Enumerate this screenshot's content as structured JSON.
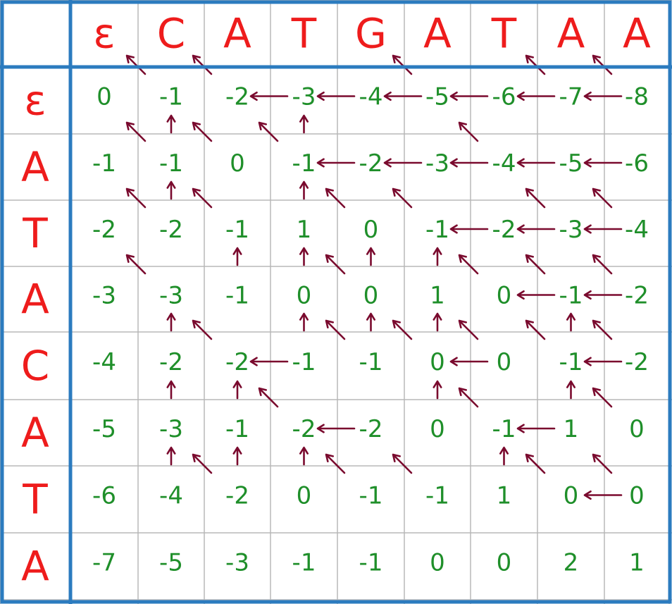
{
  "colors": {
    "grid_line": "#b8b8b8",
    "frame": "#2b7bbf",
    "header_text": "#ee1c1c",
    "value_text": "#1f8f2a",
    "arrow": "#7a0a2e"
  },
  "col_headers": [
    "ε",
    "C",
    "A",
    "T",
    "G",
    "A",
    "T",
    "A",
    "A"
  ],
  "row_headers": [
    "ε",
    "A",
    "T",
    "A",
    "C",
    "A",
    "T",
    "A"
  ],
  "scores": [
    [
      "0",
      "-1",
      "-2",
      "-3",
      "-4",
      "-5",
      "-6",
      "-7",
      "-8"
    ],
    [
      "-1",
      "-1",
      "0",
      "-1",
      "-2",
      "-3",
      "-4",
      "-5",
      "-6"
    ],
    [
      "-2",
      "-2",
      "-1",
      "1",
      "0",
      "-1",
      "-2",
      "-3",
      "-4"
    ],
    [
      "-3",
      "-3",
      "-1",
      "0",
      "0",
      "1",
      "0",
      "-1",
      "-2"
    ],
    [
      "-4",
      "-2",
      "-2",
      "-1",
      "-1",
      "0",
      "0",
      "-1",
      "-2"
    ],
    [
      "-5",
      "-3",
      "-1",
      "-2",
      "-2",
      "0",
      "-1",
      "1",
      "0"
    ],
    [
      "-6",
      "-4",
      "-2",
      "0",
      "-1",
      "-1",
      "1",
      "0",
      "0"
    ],
    [
      "-7",
      "-5",
      "-3",
      "-1",
      "-1",
      "0",
      "0",
      "2",
      "1"
    ]
  ],
  "arrows": {
    "left": [
      [
        1,
        3
      ],
      [
        1,
        4
      ],
      [
        1,
        5
      ],
      [
        1,
        6
      ],
      [
        1,
        7
      ],
      [
        1,
        8
      ],
      [
        2,
        4
      ],
      [
        2,
        5
      ],
      [
        2,
        6
      ],
      [
        2,
        7
      ],
      [
        2,
        8
      ],
      [
        3,
        6
      ],
      [
        3,
        7
      ],
      [
        3,
        8
      ],
      [
        4,
        7
      ],
      [
        4,
        8
      ],
      [
        5,
        3
      ],
      [
        5,
        6
      ],
      [
        5,
        8
      ],
      [
        6,
        4
      ],
      [
        6,
        7
      ],
      [
        7,
        8
      ]
    ],
    "up": [
      [
        2,
        1
      ],
      [
        2,
        3
      ],
      [
        3,
        1
      ],
      [
        3,
        3
      ],
      [
        4,
        2
      ],
      [
        4,
        3
      ],
      [
        4,
        4
      ],
      [
        4,
        5
      ],
      [
        5,
        1
      ],
      [
        5,
        3
      ],
      [
        5,
        4
      ],
      [
        5,
        5
      ],
      [
        5,
        7
      ],
      [
        6,
        1
      ],
      [
        6,
        2
      ],
      [
        6,
        5
      ],
      [
        6,
        7
      ],
      [
        7,
        1
      ],
      [
        7,
        2
      ],
      [
        7,
        3
      ],
      [
        7,
        6
      ]
    ],
    "diag": [
      [
        1,
        1
      ],
      [
        1,
        2
      ],
      [
        1,
        5
      ],
      [
        1,
        7
      ],
      [
        1,
        8
      ],
      [
        2,
        1
      ],
      [
        2,
        2
      ],
      [
        2,
        3
      ],
      [
        2,
        6
      ],
      [
        3,
        1
      ],
      [
        3,
        2
      ],
      [
        3,
        4
      ],
      [
        3,
        5
      ],
      [
        3,
        7
      ],
      [
        3,
        8
      ],
      [
        4,
        1
      ],
      [
        4,
        4
      ],
      [
        4,
        6
      ],
      [
        4,
        7
      ],
      [
        4,
        8
      ],
      [
        5,
        2
      ],
      [
        5,
        4
      ],
      [
        5,
        5
      ],
      [
        5,
        6
      ],
      [
        5,
        7
      ],
      [
        5,
        8
      ],
      [
        6,
        3
      ],
      [
        6,
        6
      ],
      [
        6,
        8
      ],
      [
        7,
        2
      ],
      [
        7,
        4
      ],
      [
        7,
        5
      ],
      [
        7,
        7
      ],
      [
        7,
        8
      ]
    ]
  }
}
